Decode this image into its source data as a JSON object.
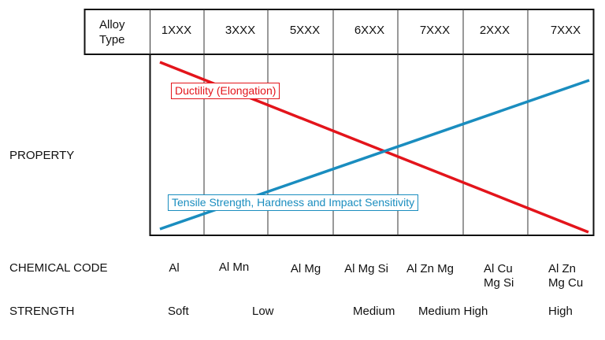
{
  "header": {
    "label": "Alloy Type",
    "alloy_types": [
      "1XXX",
      "3XXX",
      "5XXX",
      "6XXX",
      "7XXX",
      "2XXX",
      "7XXX"
    ]
  },
  "rows": {
    "property": "PROPERTY",
    "chemical_code": "CHEMICAL CODE",
    "strength": "STRENGTH"
  },
  "chemical_codes": [
    {
      "l1": "Al",
      "l2": ""
    },
    {
      "l1": "Al Mn",
      "l2": ""
    },
    {
      "l1": "Al Mg",
      "l2": ""
    },
    {
      "l1": "Al Mg Si",
      "l2": ""
    },
    {
      "l1": "Al Zn Mg",
      "l2": ""
    },
    {
      "l1": "Al Cu",
      "l2": "Mg Si"
    },
    {
      "l1": "Al Zn",
      "l2": "Mg Cu"
    }
  ],
  "strengths": [
    "Soft",
    "Low",
    "Medium",
    "Medium High",
    "High"
  ],
  "series": [
    {
      "name": "Ductility (Elongation)",
      "color": "#e3141b",
      "trend": "decreasing"
    },
    {
      "name": "Tensile Strength, Hardness and Impact Sensitivity",
      "color": "#1a8dbf",
      "trend": "increasing"
    }
  ]
}
